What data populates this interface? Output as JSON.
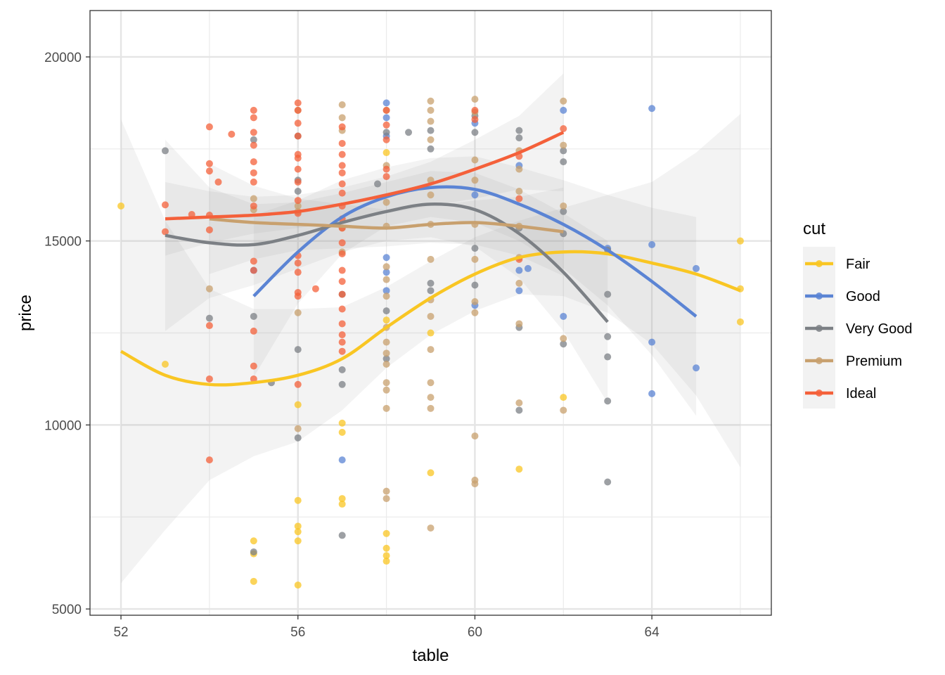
{
  "chart_data": {
    "type": "scatter",
    "title": "",
    "xlabel": "table",
    "ylabel": "price",
    "xlim": [
      51.3,
      66.7
    ],
    "ylim": [
      4830,
      21260
    ],
    "x_ticks": [
      52,
      56,
      60,
      64
    ],
    "x_tick_labels": [
      "52",
      "56",
      "60",
      "64"
    ],
    "y_ticks": [
      5000,
      10000,
      15000,
      20000
    ],
    "y_tick_labels": [
      "5000",
      "10000",
      "15000",
      "20000"
    ],
    "grid": true,
    "legend_title": "cut",
    "legend_position": "right",
    "series": [
      {
        "name": "Fair",
        "color": "#F9C623",
        "points": [
          [
            52,
            15950
          ],
          [
            53,
            11650
          ],
          [
            55,
            6850
          ],
          [
            55,
            6500
          ],
          [
            55,
            5750
          ],
          [
            56,
            10550
          ],
          [
            56,
            7950
          ],
          [
            56,
            7250
          ],
          [
            56,
            7100
          ],
          [
            56,
            6850
          ],
          [
            56,
            5650
          ],
          [
            57,
            10050
          ],
          [
            57,
            9800
          ],
          [
            57,
            8000
          ],
          [
            57,
            7850
          ],
          [
            58,
            17400
          ],
          [
            58,
            12850
          ],
          [
            58,
            7050
          ],
          [
            58,
            6650
          ],
          [
            58,
            6450
          ],
          [
            58,
            6300
          ],
          [
            59,
            12500
          ],
          [
            59,
            8700
          ],
          [
            61,
            8800
          ],
          [
            62,
            10750
          ],
          [
            66,
            15000
          ],
          [
            66,
            13700
          ],
          [
            66,
            12800
          ]
        ],
        "smooth": [
          [
            52,
            12000
          ],
          [
            53,
            11350
          ],
          [
            54,
            11100
          ],
          [
            55,
            11150
          ],
          [
            56,
            11350
          ],
          [
            57,
            11800
          ],
          [
            58,
            12650
          ],
          [
            59,
            13450
          ],
          [
            60,
            14100
          ],
          [
            61,
            14550
          ],
          [
            62,
            14700
          ],
          [
            63,
            14650
          ],
          [
            64,
            14400
          ],
          [
            65,
            14100
          ],
          [
            66,
            13650
          ]
        ]
      },
      {
        "name": "Good",
        "color": "#5B84D4",
        "points": [
          [
            55,
            14200
          ],
          [
            57,
            9050
          ],
          [
            58,
            18750
          ],
          [
            58,
            18350
          ],
          [
            58,
            17850
          ],
          [
            58,
            14550
          ],
          [
            58,
            14150
          ],
          [
            58,
            13650
          ],
          [
            60,
            18200
          ],
          [
            60,
            16250
          ],
          [
            60,
            13250
          ],
          [
            61,
            17050
          ],
          [
            61,
            14200
          ],
          [
            61,
            13650
          ],
          [
            61.2,
            14250
          ],
          [
            62,
            18550
          ],
          [
            62,
            12950
          ],
          [
            63,
            14800
          ],
          [
            64,
            18600
          ],
          [
            64,
            14900
          ],
          [
            64,
            12250
          ],
          [
            64,
            10850
          ],
          [
            65,
            14250
          ],
          [
            65,
            11550
          ]
        ],
        "smooth": [
          [
            55,
            13500
          ],
          [
            56,
            14700
          ],
          [
            57,
            15650
          ],
          [
            58,
            16200
          ],
          [
            59,
            16450
          ],
          [
            60,
            16400
          ],
          [
            61,
            16000
          ],
          [
            62,
            15450
          ],
          [
            63,
            14750
          ],
          [
            64,
            13900
          ],
          [
            65,
            12950
          ]
        ]
      },
      {
        "name": "Very Good",
        "color": "#7C8085",
        "points": [
          [
            53,
            17450
          ],
          [
            54,
            12900
          ],
          [
            55,
            17750
          ],
          [
            55,
            12950
          ],
          [
            55,
            6550
          ],
          [
            55.4,
            11150
          ],
          [
            56,
            17850
          ],
          [
            56,
            16650
          ],
          [
            56,
            16350
          ],
          [
            56,
            12050
          ],
          [
            56,
            9650
          ],
          [
            57,
            13550
          ],
          [
            57,
            11500
          ],
          [
            57,
            11100
          ],
          [
            57,
            7000
          ],
          [
            57.8,
            16550
          ],
          [
            58,
            17950
          ],
          [
            58,
            13100
          ],
          [
            58,
            11800
          ],
          [
            58.5,
            17950
          ],
          [
            59,
            18000
          ],
          [
            59,
            17500
          ],
          [
            59,
            13850
          ],
          [
            59,
            13650
          ],
          [
            60,
            18400
          ],
          [
            60,
            17950
          ],
          [
            60,
            14800
          ],
          [
            60,
            13800
          ],
          [
            61,
            18000
          ],
          [
            61,
            17800
          ],
          [
            61,
            15350
          ],
          [
            61,
            12650
          ],
          [
            61,
            10400
          ],
          [
            62,
            17450
          ],
          [
            62,
            17150
          ],
          [
            62,
            15800
          ],
          [
            62,
            15200
          ],
          [
            62,
            12200
          ],
          [
            63,
            14750
          ],
          [
            63,
            13550
          ],
          [
            63,
            12400
          ],
          [
            63,
            11850
          ],
          [
            63,
            10650
          ],
          [
            63,
            8450
          ]
        ],
        "smooth": [
          [
            53,
            15150
          ],
          [
            54,
            14950
          ],
          [
            55,
            14900
          ],
          [
            56,
            15150
          ],
          [
            57,
            15500
          ],
          [
            58,
            15800
          ],
          [
            59,
            16000
          ],
          [
            60,
            15850
          ],
          [
            61,
            15200
          ],
          [
            62,
            14150
          ],
          [
            63,
            12800
          ]
        ]
      },
      {
        "name": "Premium",
        "color": "#C8A06E",
        "points": [
          [
            54,
            13700
          ],
          [
            55,
            16150
          ],
          [
            55,
            15850
          ],
          [
            56,
            18550
          ],
          [
            56,
            15950
          ],
          [
            56,
            15800
          ],
          [
            56,
            13050
          ],
          [
            56,
            9900
          ],
          [
            57,
            18700
          ],
          [
            57,
            18350
          ],
          [
            57,
            18000
          ],
          [
            57,
            15350
          ],
          [
            57,
            14700
          ],
          [
            58,
            18550
          ],
          [
            58,
            17050
          ],
          [
            58,
            16050
          ],
          [
            58,
            15400
          ],
          [
            58,
            14300
          ],
          [
            58,
            13950
          ],
          [
            58,
            13500
          ],
          [
            58,
            12650
          ],
          [
            58,
            12250
          ],
          [
            58,
            11950
          ],
          [
            58,
            11650
          ],
          [
            58,
            11150
          ],
          [
            58,
            10950
          ],
          [
            58,
            10450
          ],
          [
            58,
            8200
          ],
          [
            58,
            8000
          ],
          [
            59,
            18800
          ],
          [
            59,
            18550
          ],
          [
            59,
            18250
          ],
          [
            59,
            17750
          ],
          [
            59,
            16650
          ],
          [
            59,
            16250
          ],
          [
            59,
            15450
          ],
          [
            59,
            14500
          ],
          [
            59,
            13400
          ],
          [
            59,
            12950
          ],
          [
            59,
            12050
          ],
          [
            59,
            11150
          ],
          [
            59,
            10750
          ],
          [
            59,
            10450
          ],
          [
            59,
            7200
          ],
          [
            60,
            18850
          ],
          [
            60,
            18500
          ],
          [
            60,
            17200
          ],
          [
            60,
            16650
          ],
          [
            60,
            15450
          ],
          [
            60,
            14500
          ],
          [
            60,
            13350
          ],
          [
            60,
            13050
          ],
          [
            60,
            9700
          ],
          [
            60,
            8500
          ],
          [
            60,
            8400
          ],
          [
            61,
            17450
          ],
          [
            61,
            16950
          ],
          [
            61,
            16350
          ],
          [
            61,
            15400
          ],
          [
            61,
            14550
          ],
          [
            61,
            13850
          ],
          [
            61,
            12750
          ],
          [
            61,
            10600
          ],
          [
            62,
            18800
          ],
          [
            62,
            17600
          ],
          [
            62,
            15950
          ],
          [
            62,
            12350
          ],
          [
            62,
            10400
          ]
        ],
        "smooth": [
          [
            54,
            15600
          ],
          [
            55,
            15500
          ],
          [
            56,
            15450
          ],
          [
            57,
            15400
          ],
          [
            58,
            15350
          ],
          [
            59,
            15450
          ],
          [
            60,
            15500
          ],
          [
            61,
            15400
          ],
          [
            62,
            15250
          ]
        ]
      },
      {
        "name": "Ideal",
        "color": "#F4603A",
        "points": [
          [
            53,
            15980
          ],
          [
            53,
            15250
          ],
          [
            53.6,
            15720
          ],
          [
            54,
            18100
          ],
          [
            54,
            17100
          ],
          [
            54,
            16900
          ],
          [
            54,
            15700
          ],
          [
            54,
            15300
          ],
          [
            54,
            12700
          ],
          [
            54,
            11250
          ],
          [
            54,
            9050
          ],
          [
            54.2,
            16600
          ],
          [
            54.5,
            17900
          ],
          [
            55,
            18550
          ],
          [
            55,
            18350
          ],
          [
            55,
            17950
          ],
          [
            55,
            17600
          ],
          [
            55,
            17150
          ],
          [
            55,
            16850
          ],
          [
            55,
            16600
          ],
          [
            55,
            15950
          ],
          [
            55,
            14450
          ],
          [
            55,
            14200
          ],
          [
            55,
            12550
          ],
          [
            55,
            11600
          ],
          [
            55,
            11250
          ],
          [
            56,
            18750
          ],
          [
            56,
            18550
          ],
          [
            56,
            18200
          ],
          [
            56,
            17850
          ],
          [
            56,
            17350
          ],
          [
            56,
            17250
          ],
          [
            56,
            16950
          ],
          [
            56,
            16600
          ],
          [
            56,
            16100
          ],
          [
            56,
            15750
          ],
          [
            56,
            14600
          ],
          [
            56,
            14400
          ],
          [
            56,
            14150
          ],
          [
            56,
            13600
          ],
          [
            56,
            13500
          ],
          [
            56,
            11100
          ],
          [
            56.4,
            13700
          ],
          [
            57,
            18100
          ],
          [
            57,
            17650
          ],
          [
            57,
            17350
          ],
          [
            57,
            17050
          ],
          [
            57,
            16850
          ],
          [
            57,
            16550
          ],
          [
            57,
            16300
          ],
          [
            57,
            15950
          ],
          [
            57,
            15600
          ],
          [
            57,
            15350
          ],
          [
            57,
            14950
          ],
          [
            57,
            14650
          ],
          [
            57,
            14200
          ],
          [
            57,
            13900
          ],
          [
            57,
            13550
          ],
          [
            57,
            13150
          ],
          [
            57,
            12750
          ],
          [
            57,
            12450
          ],
          [
            57,
            12250
          ],
          [
            57,
            12000
          ],
          [
            58,
            18550
          ],
          [
            58,
            18150
          ],
          [
            58,
            17750
          ],
          [
            58,
            16950
          ],
          [
            58,
            16750
          ],
          [
            60,
            18550
          ],
          [
            60,
            18300
          ],
          [
            61,
            17300
          ],
          [
            61,
            16150
          ],
          [
            61,
            14500
          ],
          [
            62,
            18050
          ]
        ],
        "smooth": [
          [
            53,
            15600
          ],
          [
            54,
            15650
          ],
          [
            55,
            15700
          ],
          [
            56,
            15800
          ],
          [
            57,
            16000
          ],
          [
            58,
            16250
          ],
          [
            59,
            16550
          ],
          [
            60,
            16950
          ],
          [
            61,
            17400
          ],
          [
            62,
            17950
          ]
        ]
      }
    ]
  }
}
